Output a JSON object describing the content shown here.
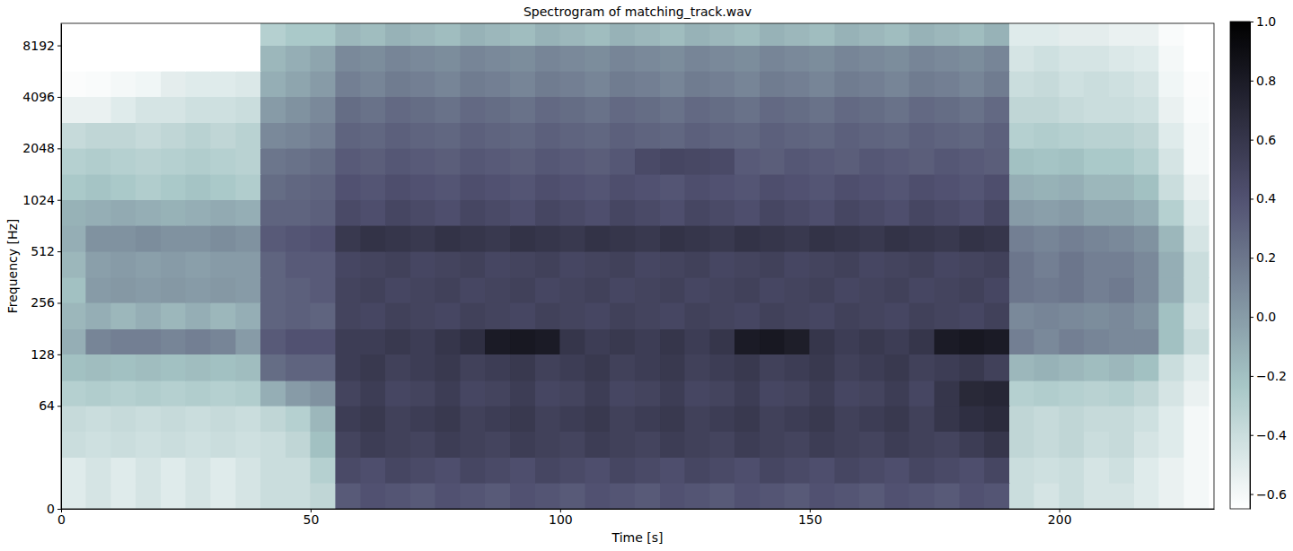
{
  "chart_data": {
    "type": "heatmap",
    "title": "Spectrogram of matching_track.wav",
    "x_label": "Time [s]",
    "y_label": "Frequency [Hz]",
    "xlim": [
      0,
      231
    ],
    "ylim": [
      0,
      11025
    ],
    "xticks": [
      0,
      50,
      100,
      150,
      200
    ],
    "yticks": [
      0,
      64,
      128,
      256,
      512,
      1024,
      2048,
      4096,
      8192
    ],
    "log": "y",
    "x_edges": [
      0,
      5,
      10,
      15,
      20,
      25,
      30,
      35,
      40,
      45,
      50,
      55,
      60,
      65,
      70,
      75,
      80,
      85,
      90,
      95,
      100,
      105,
      110,
      115,
      120,
      125,
      130,
      135,
      140,
      145,
      150,
      155,
      160,
      165,
      170,
      175,
      180,
      185,
      190,
      195,
      200,
      205,
      210,
      215,
      220,
      225,
      230
    ],
    "y_edges": [
      0,
      16,
      32,
      48,
      64,
      90,
      128,
      180,
      256,
      360,
      512,
      724,
      1024,
      1448,
      2048,
      2896,
      4096,
      5793,
      8192,
      11025
    ],
    "values": [
      [
        -0.5,
        -0.45,
        -0.5,
        -0.45,
        -0.5,
        -0.45,
        -0.5,
        -0.45,
        -0.4,
        -0.4,
        -0.35,
        0.35,
        0.4,
        0.38,
        0.35,
        0.4,
        0.38,
        0.35,
        0.4,
        0.38,
        0.35,
        0.4,
        0.38,
        0.35,
        0.4,
        0.38,
        0.35,
        0.4,
        0.38,
        0.35,
        0.4,
        0.38,
        0.35,
        0.4,
        0.38,
        0.35,
        0.4,
        0.38,
        -0.4,
        -0.45,
        -0.4,
        -0.45,
        -0.45,
        -0.5,
        -0.55,
        -0.6
      ],
      [
        -0.5,
        -0.45,
        -0.5,
        -0.45,
        -0.5,
        -0.45,
        -0.5,
        -0.45,
        -0.4,
        -0.4,
        -0.3,
        0.45,
        0.42,
        0.48,
        0.45,
        0.42,
        0.48,
        0.45,
        0.42,
        0.48,
        0.45,
        0.42,
        0.48,
        0.45,
        0.42,
        0.48,
        0.45,
        0.42,
        0.48,
        0.45,
        0.42,
        0.48,
        0.45,
        0.42,
        0.48,
        0.45,
        0.42,
        0.48,
        -0.4,
        -0.42,
        -0.4,
        -0.45,
        -0.42,
        -0.5,
        -0.55,
        -0.6
      ],
      [
        -0.4,
        -0.42,
        -0.4,
        -0.42,
        -0.4,
        -0.42,
        -0.4,
        -0.42,
        -0.4,
        -0.35,
        -0.2,
        0.5,
        0.55,
        0.52,
        0.5,
        0.55,
        0.52,
        0.5,
        0.55,
        0.52,
        0.5,
        0.55,
        0.52,
        0.5,
        0.55,
        0.52,
        0.5,
        0.55,
        0.52,
        0.5,
        0.55,
        0.52,
        0.5,
        0.55,
        0.52,
        0.5,
        0.55,
        0.6,
        -0.35,
        -0.38,
        -0.35,
        -0.4,
        -0.38,
        -0.45,
        -0.5,
        -0.6
      ],
      [
        -0.38,
        -0.4,
        -0.38,
        -0.4,
        -0.38,
        -0.4,
        -0.38,
        -0.4,
        -0.35,
        -0.3,
        -0.15,
        0.55,
        0.58,
        0.52,
        0.55,
        0.58,
        0.52,
        0.55,
        0.58,
        0.52,
        0.55,
        0.58,
        0.52,
        0.55,
        0.58,
        0.52,
        0.55,
        0.58,
        0.52,
        0.55,
        0.58,
        0.52,
        0.55,
        0.58,
        0.52,
        0.6,
        0.65,
        0.68,
        -0.35,
        -0.38,
        -0.35,
        -0.38,
        -0.38,
        -0.42,
        -0.5,
        -0.6
      ],
      [
        -0.3,
        -0.28,
        -0.3,
        -0.28,
        -0.3,
        -0.28,
        -0.3,
        -0.28,
        -0.1,
        0.0,
        0.05,
        0.5,
        0.55,
        0.48,
        0.5,
        0.55,
        0.48,
        0.5,
        0.55,
        0.48,
        0.5,
        0.55,
        0.48,
        0.5,
        0.55,
        0.48,
        0.5,
        0.55,
        0.48,
        0.5,
        0.55,
        0.48,
        0.5,
        0.55,
        0.48,
        0.6,
        0.7,
        0.72,
        -0.3,
        -0.28,
        -0.3,
        -0.32,
        -0.3,
        -0.35,
        -0.45,
        -0.55
      ],
      [
        -0.2,
        -0.18,
        -0.2,
        -0.18,
        -0.2,
        -0.18,
        -0.2,
        -0.18,
        0.25,
        0.3,
        0.3,
        0.55,
        0.58,
        0.52,
        0.55,
        0.58,
        0.52,
        0.55,
        0.58,
        0.52,
        0.55,
        0.58,
        0.52,
        0.55,
        0.58,
        0.52,
        0.55,
        0.58,
        0.52,
        0.55,
        0.58,
        0.52,
        0.55,
        0.58,
        0.52,
        0.55,
        0.58,
        0.52,
        -0.15,
        -0.12,
        -0.15,
        -0.18,
        -0.15,
        -0.2,
        -0.4,
        -0.5
      ],
      [
        -0.1,
        0.12,
        0.15,
        0.15,
        0.12,
        0.15,
        0.12,
        0.0,
        0.35,
        0.4,
        0.4,
        0.55,
        0.55,
        0.58,
        0.55,
        0.6,
        0.65,
        0.8,
        0.82,
        0.8,
        0.6,
        0.55,
        0.58,
        0.55,
        0.6,
        0.55,
        0.6,
        0.8,
        0.82,
        0.78,
        0.6,
        0.55,
        0.58,
        0.55,
        0.6,
        0.8,
        0.82,
        0.8,
        0.15,
        0.1,
        0.15,
        0.12,
        0.1,
        0.1,
        -0.2,
        -0.4
      ],
      [
        -0.15,
        -0.1,
        -0.15,
        -0.1,
        -0.15,
        -0.1,
        -0.15,
        -0.1,
        0.3,
        0.32,
        0.3,
        0.5,
        0.48,
        0.52,
        0.5,
        0.48,
        0.52,
        0.5,
        0.48,
        0.52,
        0.5,
        0.48,
        0.52,
        0.5,
        0.48,
        0.52,
        0.5,
        0.48,
        0.52,
        0.5,
        0.48,
        0.52,
        0.5,
        0.48,
        0.52,
        0.5,
        0.48,
        0.52,
        0.1,
        0.12,
        0.1,
        0.08,
        0.1,
        0.05,
        -0.2,
        -0.45
      ],
      [
        -0.2,
        0.0,
        0.02,
        0.0,
        0.02,
        0.0,
        0.02,
        0.0,
        0.3,
        0.32,
        0.35,
        0.5,
        0.52,
        0.48,
        0.5,
        0.52,
        0.48,
        0.5,
        0.52,
        0.48,
        0.5,
        0.52,
        0.48,
        0.5,
        0.52,
        0.48,
        0.5,
        0.52,
        0.48,
        0.5,
        0.52,
        0.48,
        0.5,
        0.52,
        0.48,
        0.5,
        0.52,
        0.48,
        0.2,
        0.18,
        0.2,
        0.15,
        0.18,
        0.1,
        -0.1,
        -0.4
      ],
      [
        -0.15,
        -0.02,
        0.0,
        -0.02,
        0.0,
        -0.02,
        0.0,
        0.0,
        0.3,
        0.35,
        0.35,
        0.48,
        0.5,
        0.52,
        0.48,
        0.5,
        0.52,
        0.48,
        0.5,
        0.52,
        0.48,
        0.5,
        0.52,
        0.48,
        0.5,
        0.52,
        0.48,
        0.5,
        0.52,
        0.48,
        0.5,
        0.52,
        0.48,
        0.5,
        0.52,
        0.48,
        0.5,
        0.52,
        0.2,
        0.15,
        0.2,
        0.15,
        0.15,
        0.1,
        -0.1,
        -0.4
      ],
      [
        -0.1,
        0.05,
        0.05,
        0.08,
        0.05,
        0.05,
        0.08,
        0.05,
        0.35,
        0.38,
        0.4,
        0.58,
        0.62,
        0.6,
        0.58,
        0.62,
        0.6,
        0.58,
        0.62,
        0.6,
        0.58,
        0.62,
        0.6,
        0.58,
        0.62,
        0.6,
        0.58,
        0.62,
        0.6,
        0.58,
        0.62,
        0.6,
        0.58,
        0.62,
        0.6,
        0.58,
        0.62,
        0.6,
        0.15,
        0.12,
        0.15,
        0.12,
        0.1,
        0.05,
        -0.15,
        -0.45
      ],
      [
        -0.12,
        -0.1,
        -0.08,
        -0.1,
        -0.12,
        -0.1,
        -0.08,
        -0.1,
        0.3,
        0.3,
        0.32,
        0.45,
        0.42,
        0.48,
        0.45,
        0.42,
        0.48,
        0.45,
        0.42,
        0.48,
        0.45,
        0.42,
        0.48,
        0.45,
        0.42,
        0.48,
        0.45,
        0.42,
        0.48,
        0.45,
        0.42,
        0.48,
        0.45,
        0.42,
        0.48,
        0.45,
        0.42,
        0.48,
        0.0,
        -0.02,
        0.0,
        -0.05,
        -0.05,
        -0.1,
        -0.3,
        -0.5
      ],
      [
        -0.25,
        -0.22,
        -0.25,
        -0.28,
        -0.25,
        -0.22,
        -0.25,
        -0.28,
        0.25,
        0.28,
        0.3,
        0.4,
        0.38,
        0.42,
        0.4,
        0.38,
        0.42,
        0.4,
        0.38,
        0.42,
        0.4,
        0.38,
        0.42,
        0.4,
        0.38,
        0.42,
        0.4,
        0.38,
        0.42,
        0.4,
        0.38,
        0.42,
        0.4,
        0.38,
        0.42,
        0.4,
        0.38,
        0.42,
        -0.1,
        -0.12,
        -0.1,
        -0.15,
        -0.15,
        -0.2,
        -0.4,
        -0.55
      ],
      [
        -0.3,
        -0.28,
        -0.3,
        -0.32,
        -0.3,
        -0.28,
        -0.3,
        -0.32,
        0.2,
        0.22,
        0.25,
        0.35,
        0.33,
        0.37,
        0.35,
        0.33,
        0.37,
        0.35,
        0.33,
        0.37,
        0.35,
        0.33,
        0.37,
        0.45,
        0.48,
        0.47,
        0.45,
        0.35,
        0.33,
        0.37,
        0.35,
        0.33,
        0.37,
        0.35,
        0.33,
        0.37,
        0.35,
        0.33,
        -0.2,
        -0.22,
        -0.2,
        -0.25,
        -0.25,
        -0.3,
        -0.45,
        -0.6
      ],
      [
        -0.38,
        -0.35,
        -0.35,
        -0.38,
        -0.35,
        -0.32,
        -0.35,
        -0.32,
        0.1,
        0.12,
        0.15,
        0.3,
        0.28,
        0.32,
        0.3,
        0.28,
        0.32,
        0.3,
        0.28,
        0.32,
        0.3,
        0.28,
        0.32,
        0.3,
        0.28,
        0.32,
        0.3,
        0.28,
        0.32,
        0.3,
        0.28,
        0.32,
        0.3,
        0.28,
        0.32,
        0.3,
        0.28,
        0.32,
        -0.3,
        -0.28,
        -0.3,
        -0.32,
        -0.32,
        -0.35,
        -0.5,
        -0.6
      ],
      [
        -0.55,
        -0.55,
        -0.5,
        -0.45,
        -0.45,
        -0.42,
        -0.42,
        -0.4,
        0.0,
        0.05,
        0.1,
        0.25,
        0.22,
        0.27,
        0.25,
        0.22,
        0.27,
        0.25,
        0.22,
        0.27,
        0.25,
        0.22,
        0.27,
        0.25,
        0.22,
        0.27,
        0.25,
        0.22,
        0.27,
        0.25,
        0.22,
        0.27,
        0.25,
        0.22,
        0.27,
        0.25,
        0.22,
        0.27,
        -0.35,
        -0.35,
        -0.38,
        -0.4,
        -0.4,
        -0.42,
        -0.55,
        -0.62
      ],
      [
        -0.63,
        -0.62,
        -0.6,
        -0.58,
        -0.52,
        -0.5,
        -0.5,
        -0.48,
        -0.1,
        -0.05,
        0.0,
        0.15,
        0.12,
        0.17,
        0.15,
        0.12,
        0.17,
        0.15,
        0.12,
        0.17,
        0.15,
        0.12,
        0.17,
        0.15,
        0.12,
        0.17,
        0.15,
        0.12,
        0.17,
        0.15,
        0.12,
        0.17,
        0.15,
        0.12,
        0.17,
        0.15,
        0.12,
        0.17,
        -0.4,
        -0.38,
        -0.42,
        -0.4,
        -0.42,
        -0.45,
        -0.58,
        -0.63
      ],
      [
        -0.65,
        -0.65,
        -0.65,
        -0.65,
        -0.65,
        -0.65,
        -0.65,
        -0.65,
        -0.15,
        -0.1,
        -0.05,
        0.1,
        0.08,
        0.12,
        0.1,
        0.08,
        0.12,
        0.1,
        0.08,
        0.12,
        0.1,
        0.08,
        0.12,
        0.1,
        0.08,
        0.12,
        0.1,
        0.08,
        0.12,
        0.1,
        0.08,
        0.12,
        0.1,
        0.08,
        0.12,
        0.1,
        0.08,
        0.12,
        -0.45,
        -0.42,
        -0.45,
        -0.45,
        -0.48,
        -0.5,
        -0.6,
        -0.65
      ],
      [
        -0.65,
        -0.65,
        -0.65,
        -0.65,
        -0.65,
        -0.65,
        -0.65,
        -0.65,
        -0.3,
        -0.25,
        -0.25,
        -0.15,
        -0.18,
        -0.12,
        -0.15,
        -0.18,
        -0.12,
        -0.15,
        -0.18,
        -0.12,
        -0.15,
        -0.18,
        -0.12,
        -0.15,
        -0.18,
        -0.12,
        -0.15,
        -0.18,
        -0.12,
        -0.15,
        -0.18,
        -0.12,
        -0.15,
        -0.18,
        -0.12,
        -0.15,
        -0.18,
        -0.12,
        -0.5,
        -0.5,
        -0.52,
        -0.52,
        -0.55,
        -0.55,
        -0.62,
        -0.65
      ]
    ],
    "zlim": [
      -0.65,
      1.0
    ],
    "zticks": [
      {
        "value": -0.6,
        "label": "−0.6"
      },
      {
        "value": -0.4,
        "label": "−0.4"
      },
      {
        "value": -0.2,
        "label": "−0.2"
      },
      {
        "value": 0,
        "label": "0.0"
      },
      0.2,
      0.4,
      0.6,
      0.8,
      {
        "value": 1,
        "label": "1.0"
      }
    ]
  }
}
